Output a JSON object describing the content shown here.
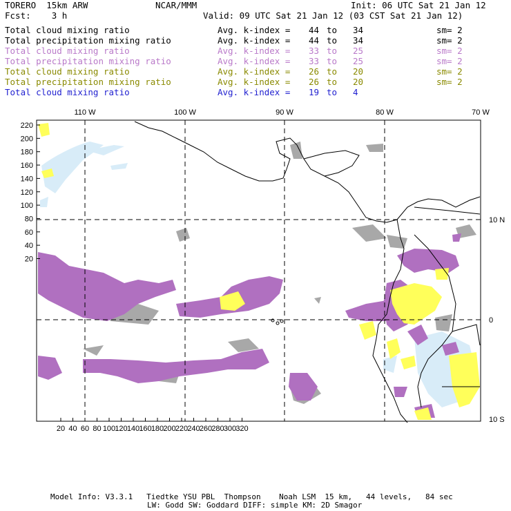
{
  "header": {
    "model": "TORERO  15km ARW",
    "center": "NCAR/MMM",
    "init": "Init: 06 UTC Sat 21 Jan 12",
    "fcst": "Fcst:    3 h",
    "valid": "Valid: 09 UTC Sat 21 Jan 12 (03 CST Sat 21 Jan 12)"
  },
  "legend": [
    {
      "field": "Total cloud mixing ratio",
      "stat": "Avg. k-index =",
      "lo": "44",
      "to": "to",
      "hi": "34",
      "sm": "sm= 2",
      "color": "#000000"
    },
    {
      "field": "Total precipitation mixing ratio",
      "stat": "Avg. k-index =",
      "lo": "44",
      "to": "to",
      "hi": "34",
      "sm": "sm= 2",
      "color": "#000000"
    },
    {
      "field": "Total cloud mixing ratio",
      "stat": "Avg. k-index =",
      "lo": "33",
      "to": "to",
      "hi": "25",
      "sm": "sm= 2",
      "color": "#b979c9"
    },
    {
      "field": "Total precipitation mixing ratio",
      "stat": "Avg. k-index =",
      "lo": "33",
      "to": "to",
      "hi": "25",
      "sm": "sm= 2",
      "color": "#b979c9"
    },
    {
      "field": "Total cloud mixing ratio",
      "stat": "Avg. k-index =",
      "lo": "26",
      "to": "to",
      "hi": "20",
      "sm": "sm= 2",
      "color": "#8a8a00"
    },
    {
      "field": "Total precipitation mixing ratio",
      "stat": "Avg. k-index =",
      "lo": "26",
      "to": "to",
      "hi": "20",
      "sm": "sm= 2",
      "color": "#8a8a00"
    },
    {
      "field": "Total cloud mixing ratio",
      "stat": "Avg. k-index =",
      "lo": "19",
      "to": "to",
      "hi": "4",
      "sm": "",
      "color": "#1f1fd0"
    }
  ],
  "map": {
    "lon_labels": [
      "110 W",
      "100 W",
      "90 W",
      "80 W",
      "70 W"
    ],
    "lat_labels": [
      "10 N",
      "0",
      "10 S"
    ],
    "y_ticks": [
      "220",
      "200",
      "180",
      "160",
      "140",
      "120",
      "100",
      "80",
      "60",
      "40",
      "20"
    ],
    "x_ticks": [
      "20",
      "40",
      "60",
      "80",
      "100",
      "120",
      "140",
      "160",
      "180",
      "200",
      "220",
      "240",
      "260",
      "280",
      "300",
      "320"
    ],
    "colors": {
      "gray": "#a8a8a8",
      "purple": "#b070c0",
      "yellow": "#ffff5a",
      "lightblue": "#d8ecf8",
      "coast": "#000000"
    }
  },
  "footer": {
    "line1": "Model Info: V3.3.1   Tiedtke YSU PBL  Thompson    Noah LSM  15 km,   44 levels,   84 sec",
    "line2": "LW: Godd SW: Goddard DIFF: simple KM: 2D Smagor"
  }
}
